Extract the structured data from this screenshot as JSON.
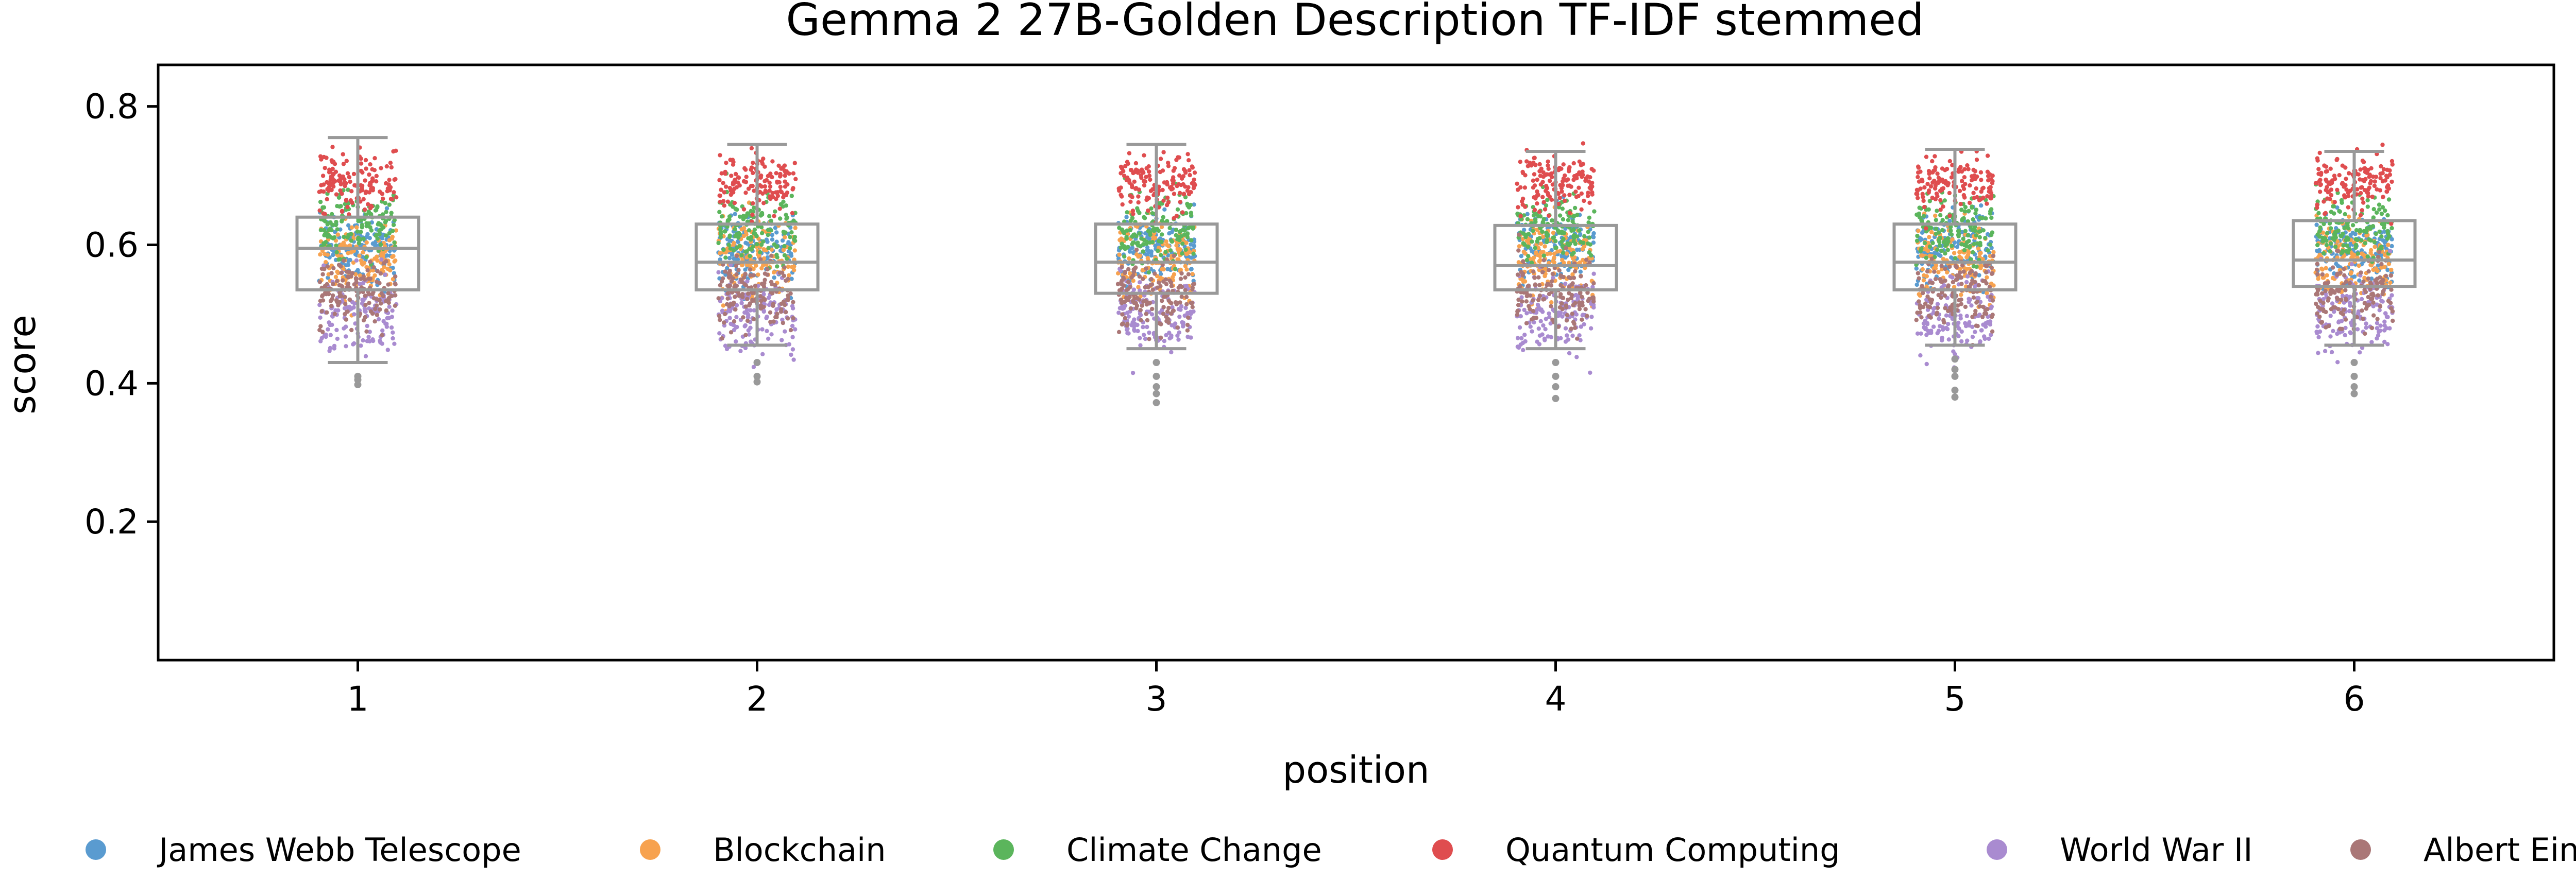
{
  "chart_data": {
    "type": "box",
    "title": "Gemma 2 27B-Golden Description TF-IDF stemmed",
    "xlabel": "position",
    "ylabel": "score",
    "categories": [
      "1",
      "2",
      "3",
      "4",
      "5",
      "6"
    ],
    "xlim": [
      0.5,
      6.5
    ],
    "ylim": [
      0.0,
      0.86
    ],
    "yticks": [
      0.2,
      0.4,
      0.6,
      0.8
    ],
    "grid": false,
    "legend_position": "bottom",
    "boxes": [
      {
        "position": "1",
        "whisker_low": 0.43,
        "q1": 0.535,
        "median": 0.595,
        "q3": 0.64,
        "whisker_high": 0.755
      },
      {
        "position": "2",
        "whisker_low": 0.455,
        "q1": 0.535,
        "median": 0.575,
        "q3": 0.63,
        "whisker_high": 0.745
      },
      {
        "position": "3",
        "whisker_low": 0.45,
        "q1": 0.53,
        "median": 0.575,
        "q3": 0.63,
        "whisker_high": 0.745
      },
      {
        "position": "4",
        "whisker_low": 0.45,
        "q1": 0.535,
        "median": 0.57,
        "q3": 0.628,
        "whisker_high": 0.735
      },
      {
        "position": "5",
        "whisker_low": 0.455,
        "q1": 0.535,
        "median": 0.575,
        "q3": 0.63,
        "whisker_high": 0.738
      },
      {
        "position": "6",
        "whisker_low": 0.455,
        "q1": 0.54,
        "median": 0.578,
        "q3": 0.635,
        "whisker_high": 0.735
      }
    ],
    "outliers": [
      {
        "position": "1",
        "values": [
          0.41,
          0.405,
          0.398
        ]
      },
      {
        "position": "2",
        "values": [
          0.43,
          0.41,
          0.402
        ]
      },
      {
        "position": "3",
        "values": [
          0.43,
          0.41,
          0.395,
          0.385,
          0.372
        ]
      },
      {
        "position": "4",
        "values": [
          0.43,
          0.41,
          0.395,
          0.378
        ]
      },
      {
        "position": "5",
        "values": [
          0.435,
          0.42,
          0.41,
          0.39,
          0.38
        ]
      },
      {
        "position": "6",
        "values": [
          0.43,
          0.41,
          0.395,
          0.385
        ]
      }
    ],
    "series": [
      {
        "name": "James Webb Telescope",
        "color": "#5a9bd0",
        "mean": 0.595,
        "spread": 0.035
      },
      {
        "name": "Blockchain",
        "color": "#f7a24f",
        "mean": 0.58,
        "spread": 0.04
      },
      {
        "name": "Climate Change",
        "color": "#5bb55c",
        "mean": 0.625,
        "spread": 0.035
      },
      {
        "name": "Quantum Computing",
        "color": "#df4d4f",
        "mean": 0.69,
        "spread": 0.03
      },
      {
        "name": "World War II",
        "color": "#a98bd0",
        "mean": 0.5,
        "spread": 0.04
      },
      {
        "name": "Albert Einstein",
        "color": "#aa7777",
        "mean": 0.53,
        "spread": 0.035
      }
    ],
    "box_color": "#999999"
  }
}
